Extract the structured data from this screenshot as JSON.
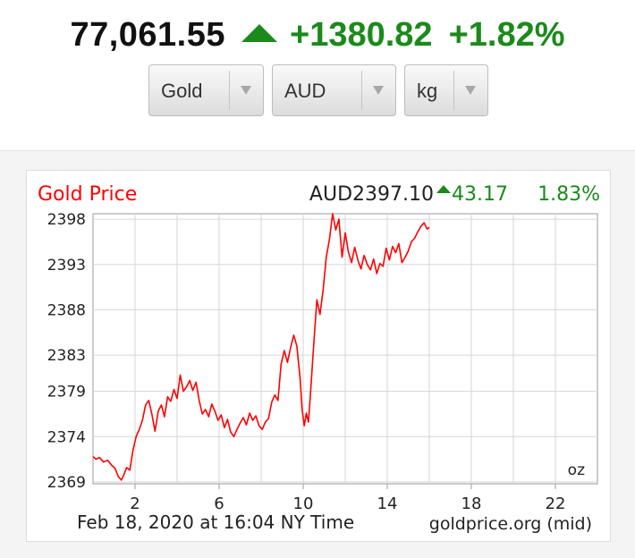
{
  "header": {
    "price": "77,061.55",
    "change": "+1380.82",
    "change_pct": "+1.82%",
    "up_color": "#1b8a1b",
    "arrow_icon": "up-triangle-icon"
  },
  "selectors": {
    "metal": "Gold",
    "currency": "AUD",
    "unit": "kg"
  },
  "chart_data": {
    "type": "line",
    "title": "Gold Price",
    "current_value": "AUD2397.10",
    "change": "43.17",
    "change_pct": "1.83%",
    "unit_label": "oz",
    "timestamp": "Feb 18, 2020 at 16:04 NY Time",
    "source": "goldprice.org (mid)",
    "series_color": "#ff0000",
    "up_color": "#1b8a1b",
    "xlim": [
      0,
      24
    ],
    "ylim": [
      2368.8,
      2398.6
    ],
    "yticks": [
      2398,
      2393,
      2388,
      2383,
      2379,
      2374,
      2369
    ],
    "xticks": [
      2,
      6,
      10,
      14,
      18,
      22
    ],
    "grid": true,
    "x": [
      0,
      0.15,
      0.3,
      0.5,
      0.7,
      0.9,
      1.05,
      1.2,
      1.35,
      1.45,
      1.6,
      1.75,
      1.9,
      2.05,
      2.2,
      2.35,
      2.5,
      2.65,
      2.8,
      2.95,
      3.1,
      3.25,
      3.4,
      3.55,
      3.7,
      3.85,
      4.0,
      4.15,
      4.3,
      4.45,
      4.6,
      4.75,
      4.9,
      5.05,
      5.2,
      5.35,
      5.5,
      5.65,
      5.8,
      5.95,
      6.1,
      6.25,
      6.4,
      6.55,
      6.7,
      6.85,
      7.0,
      7.15,
      7.3,
      7.45,
      7.6,
      7.75,
      7.9,
      8.05,
      8.2,
      8.35,
      8.5,
      8.65,
      8.8,
      8.95,
      9.1,
      9.25,
      9.4,
      9.55,
      9.7,
      9.85,
      9.95,
      10.05,
      10.15,
      10.25,
      10.35,
      10.5,
      10.65,
      10.8,
      10.95,
      11.1,
      11.25,
      11.4,
      11.55,
      11.7,
      11.85,
      12.0,
      12.15,
      12.3,
      12.45,
      12.6,
      12.75,
      12.9,
      13.05,
      13.2,
      13.35,
      13.5,
      13.65,
      13.8,
      13.95,
      14.1,
      14.25,
      14.4,
      14.55,
      14.7,
      14.85,
      15.0,
      15.15,
      15.3,
      15.45,
      15.6,
      15.75,
      15.9,
      16.0
    ],
    "y": [
      2371.8,
      2371.5,
      2371.7,
      2371.2,
      2371.4,
      2370.8,
      2370.5,
      2369.6,
      2369.2,
      2369.7,
      2370.6,
      2370.3,
      2372.5,
      2374.0,
      2374.8,
      2375.8,
      2377.5,
      2378.0,
      2376.5,
      2374.6,
      2376.8,
      2377.5,
      2376.2,
      2378.4,
      2377.9,
      2379.2,
      2378.2,
      2380.8,
      2379.0,
      2379.5,
      2380.2,
      2379.1,
      2380.0,
      2378.0,
      2376.5,
      2377.0,
      2376.2,
      2377.6,
      2376.8,
      2375.8,
      2376.4,
      2375.0,
      2375.9,
      2374.5,
      2374.0,
      2374.8,
      2375.5,
      2376.1,
      2375.3,
      2376.6,
      2375.8,
      2376.3,
      2375.2,
      2374.8,
      2375.6,
      2376.0,
      2377.8,
      2378.6,
      2378.0,
      2382.0,
      2383.5,
      2382.2,
      2383.8,
      2385.2,
      2384.0,
      2380.5,
      2377.0,
      2375.2,
      2376.6,
      2375.6,
      2378.8,
      2384.2,
      2389.1,
      2387.5,
      2390.2,
      2393.8,
      2395.8,
      2398.6,
      2396.8,
      2398.0,
      2393.8,
      2396.5,
      2394.4,
      2393.2,
      2394.9,
      2393.5,
      2392.5,
      2394.0,
      2393.0,
      2392.4,
      2393.6,
      2392.0,
      2393.1,
      2392.8,
      2394.8,
      2393.5,
      2395.0,
      2394.3,
      2395.3,
      2393.2,
      2393.8,
      2394.5,
      2395.5,
      2395.9,
      2396.6,
      2397.2,
      2397.6,
      2396.9,
      2397.1
    ]
  }
}
